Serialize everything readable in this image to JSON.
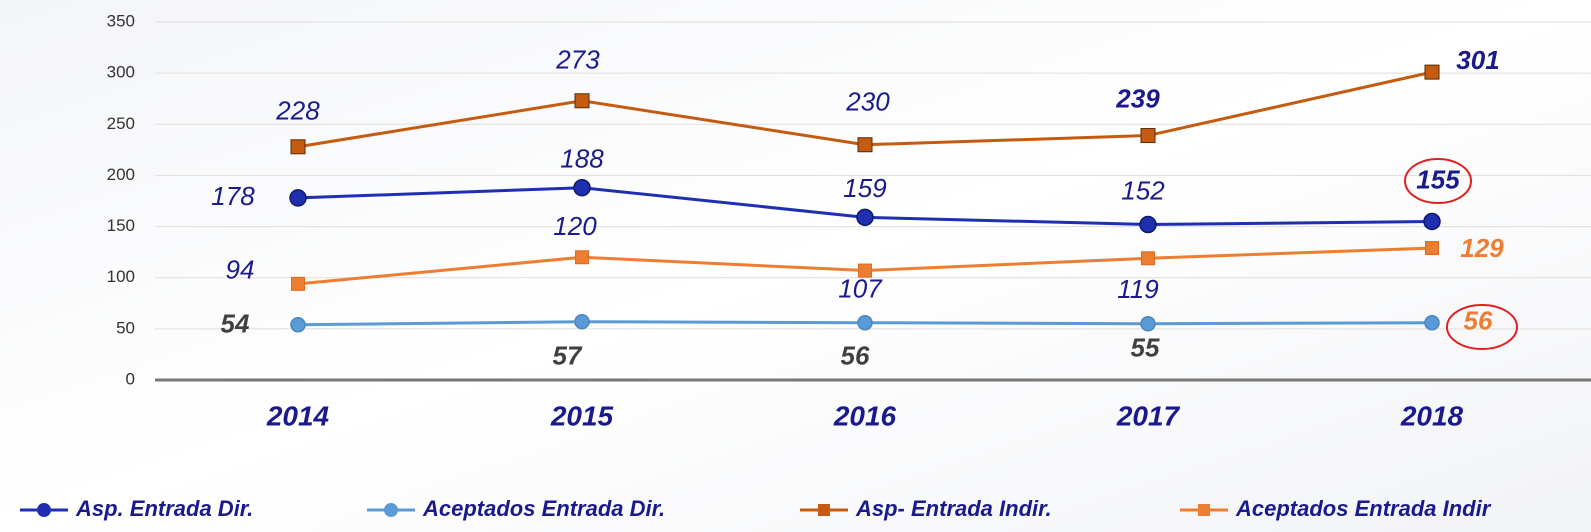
{
  "chart_data": {
    "type": "line",
    "categories": [
      "2014",
      "2015",
      "2016",
      "2017",
      "2018"
    ],
    "series": [
      {
        "name": "Asp. Entrada Dir.",
        "color": "#1f2fb0",
        "marker": "circle",
        "values": [
          178,
          188,
          159,
          152,
          155
        ]
      },
      {
        "name": "Aceptados Entrada Dir.",
        "color": "#5b9bd5",
        "marker": "circle",
        "values": [
          54,
          57,
          56,
          55,
          56
        ]
      },
      {
        "name": "Asp- Entrada Indir.",
        "color": "#c55a11",
        "marker": "square",
        "values": [
          228,
          273,
          230,
          239,
          301
        ]
      },
      {
        "name": "Aceptados Entrada Indir",
        "color": "#ed7d31",
        "marker": "square",
        "values": [
          94,
          120,
          107,
          119,
          129
        ]
      }
    ],
    "ylim": [
      0,
      350
    ],
    "yticks": [
      0,
      50,
      100,
      150,
      200,
      250,
      300,
      350
    ],
    "grid": true,
    "legend": "bottom"
  }
}
